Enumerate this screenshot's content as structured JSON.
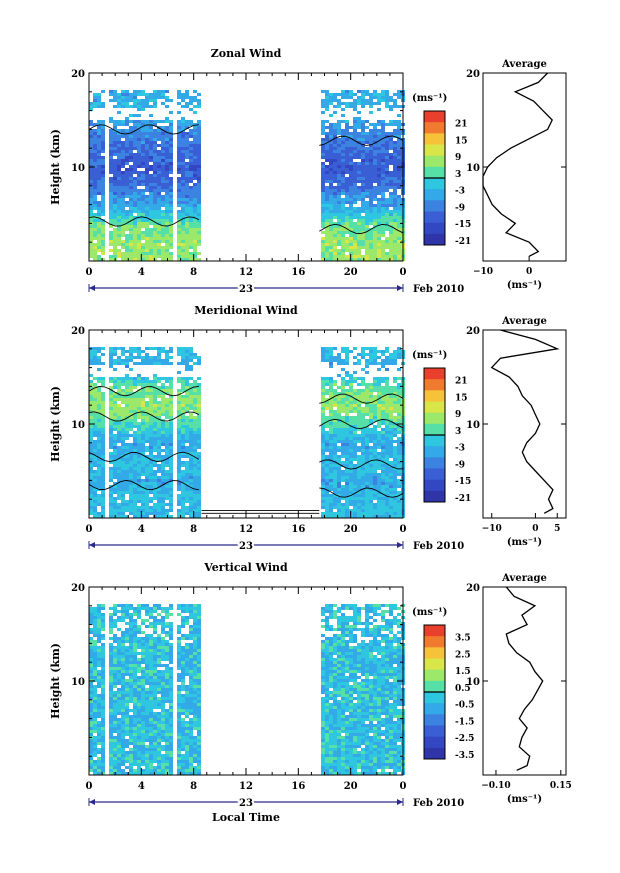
{
  "panels": [
    {
      "title": "Zonal Wind",
      "ylabel": "Height (km)",
      "yticks": [
        "10",
        "20"
      ],
      "xticks": [
        "0",
        "4",
        "8",
        "12",
        "16",
        "20",
        "0"
      ],
      "day_label": "23",
      "month_label": "Feb 2010",
      "colorbar": {
        "unit": "(ms⁻¹)",
        "labels": [
          "21",
          "15",
          "9",
          "3",
          "-3",
          "-9",
          "-15",
          "-21"
        ],
        "colors": [
          "#e8402c",
          "#f07a2e",
          "#f6c23a",
          "#d9e64a",
          "#9be86a",
          "#56dfa6",
          "#2fc7df",
          "#34a9e8",
          "#3c82e0",
          "#3a5fd4",
          "#3347c2",
          "#2f34a8"
        ]
      },
      "profile": {
        "title": "Average",
        "xticks": [
          "−10",
          "0"
        ],
        "xlabel": "(ms⁻¹)",
        "yticks": [
          "10",
          "20"
        ]
      }
    },
    {
      "title": "Meridional Wind",
      "ylabel": "Height (km)",
      "yticks": [
        "10",
        "20"
      ],
      "xticks": [
        "0",
        "4",
        "8",
        "12",
        "16",
        "20",
        "0"
      ],
      "day_label": "23",
      "month_label": "Feb 2010",
      "colorbar": {
        "unit": "(ms⁻¹)",
        "labels": [
          "21",
          "15",
          "9",
          "3",
          "-3",
          "-9",
          "-15",
          "-21"
        ],
        "colors": [
          "#e8402c",
          "#f07a2e",
          "#f6c23a",
          "#d9e64a",
          "#9be86a",
          "#56dfa6",
          "#2fc7df",
          "#34a9e8",
          "#3c82e0",
          "#3a5fd4",
          "#3347c2",
          "#2f34a8"
        ]
      },
      "profile": {
        "title": "Average",
        "xticks": [
          "−10",
          "0",
          "5"
        ],
        "xlabel": "(ms⁻¹)",
        "yticks": [
          "10",
          "20"
        ]
      }
    },
    {
      "title": "Vertical Wind",
      "ylabel": "Height (km)",
      "yticks": [
        "10",
        "20"
      ],
      "xticks": [
        "0",
        "4",
        "8",
        "12",
        "16",
        "20",
        "0"
      ],
      "day_label": "23",
      "month_label": "Feb 2010",
      "xlabel": "Local Time",
      "colorbar": {
        "unit": "(ms⁻¹)",
        "labels": [
          "3.5",
          "2.5",
          "1.5",
          "0.5",
          "-0.5",
          "-1.5",
          "-2.5",
          "-3.5"
        ],
        "colors": [
          "#e8402c",
          "#f07a2e",
          "#f6c23a",
          "#d9e64a",
          "#9be86a",
          "#56dfa6",
          "#2fc7df",
          "#34a9e8",
          "#3c82e0",
          "#3a5fd4",
          "#3347c2",
          "#2f34a8"
        ]
      },
      "profile": {
        "title": "Average",
        "xticks": [
          "−0.10",
          "0.15"
        ],
        "xlabel": "(ms⁻¹)",
        "yticks": [
          "10",
          "20"
        ]
      }
    }
  ],
  "chart_data": [
    {
      "type": "heatmap",
      "title": "Zonal Wind",
      "ylabel": "Height (km)",
      "ylim": [
        0,
        20
      ],
      "xlabel": "",
      "x_hours_range": [
        0,
        24
      ],
      "data_gaps_hours": [
        [
          1.3,
          1.6
        ],
        [
          6.3,
          6.6
        ],
        [
          8.6,
          17.6
        ]
      ],
      "approx_rows": [
        {
          "height_km": 18,
          "value": -6
        },
        {
          "height_km": 16,
          "value": -4
        },
        {
          "height_km": 14,
          "value": -9
        },
        {
          "height_km": 12,
          "value": -12
        },
        {
          "height_km": 10,
          "value": -15
        },
        {
          "height_km": 8,
          "value": -12
        },
        {
          "height_km": 6,
          "value": -6
        },
        {
          "height_km": 4,
          "value": 3
        },
        {
          "height_km": 2,
          "value": 6
        }
      ],
      "profile": {
        "type": "line",
        "title": "Average",
        "xlim": [
          -10,
          8
        ],
        "ylim": [
          0,
          20
        ],
        "x": [
          0,
          2,
          0,
          -5,
          -3,
          -6,
          -8,
          -9,
          -10,
          -10,
          -9,
          -7,
          -4,
          0,
          4,
          5,
          3,
          1,
          -3,
          2,
          4
        ],
        "y": [
          0.5,
          1,
          2,
          3,
          4,
          5,
          6,
          7,
          8,
          9,
          10,
          11,
          12,
          13,
          14,
          15,
          16,
          17,
          18,
          19,
          20
        ]
      }
    },
    {
      "type": "heatmap",
      "title": "Meridional Wind",
      "ylabel": "Height (km)",
      "ylim": [
        0,
        20
      ],
      "xlabel": "",
      "x_hours_range": [
        0,
        24
      ],
      "data_gaps_hours": [
        [
          1.3,
          1.6
        ],
        [
          6.3,
          6.6
        ],
        [
          8.6,
          17.6
        ]
      ],
      "approx_rows": [
        {
          "height_km": 18,
          "value": -3
        },
        {
          "height_km": 16,
          "value": -6
        },
        {
          "height_km": 14,
          "value": 3
        },
        {
          "height_km": 12,
          "value": 6
        },
        {
          "height_km": 10,
          "value": 0
        },
        {
          "height_km": 8,
          "value": -6
        },
        {
          "height_km": 6,
          "value": -3
        },
        {
          "height_km": 4,
          "value": -6
        },
        {
          "height_km": 2,
          "value": -3
        }
      ],
      "profile": {
        "type": "line",
        "title": "Average",
        "xlim": [
          -12,
          7
        ],
        "ylim": [
          0,
          20
        ],
        "x": [
          2,
          4,
          3,
          4,
          2,
          0,
          -2,
          -3,
          -2,
          0,
          1,
          0,
          -1,
          -3,
          -4,
          -6,
          -10,
          -8,
          5,
          0,
          -8
        ],
        "y": [
          0.5,
          1,
          2,
          3,
          4,
          5,
          6,
          7,
          8,
          9,
          10,
          11,
          12,
          13,
          14,
          15,
          16,
          17,
          18,
          19,
          20
        ]
      }
    },
    {
      "type": "heatmap",
      "title": "Vertical Wind",
      "ylabel": "Height (km)",
      "ylim": [
        0,
        20
      ],
      "xlabel": "Local Time",
      "x_hours_range": [
        0,
        24
      ],
      "data_gaps_hours": [
        [
          1.3,
          1.6
        ],
        [
          6.3,
          6.6
        ],
        [
          8.6,
          17.6
        ]
      ],
      "approx_rows": [
        {
          "height_km": 18,
          "value": -0.5
        },
        {
          "height_km": 16,
          "value": -0.5
        },
        {
          "height_km": 13,
          "value": -0.5
        },
        {
          "height_km": 10,
          "value": -0.5
        },
        {
          "height_km": 7,
          "value": -0.5
        },
        {
          "height_km": 4,
          "value": -0.5
        },
        {
          "height_km": 1,
          "value": -0.5
        }
      ],
      "profile": {
        "type": "line",
        "title": "Average",
        "xlim": [
          -0.15,
          0.17
        ],
        "ylim": [
          0,
          20
        ],
        "x": [
          -0.02,
          0.02,
          0.03,
          -0.01,
          0.0,
          0.02,
          -0.01,
          0.01,
          0.04,
          0.06,
          0.08,
          0.05,
          0.03,
          -0.02,
          -0.05,
          -0.06,
          0.02,
          0.0,
          0.05,
          -0.03,
          -0.06
        ],
        "y": [
          0.5,
          1,
          2,
          3,
          4,
          5,
          6,
          7,
          8,
          9,
          10,
          11,
          12,
          13,
          14,
          15,
          16,
          17,
          18,
          19,
          20
        ]
      }
    }
  ]
}
